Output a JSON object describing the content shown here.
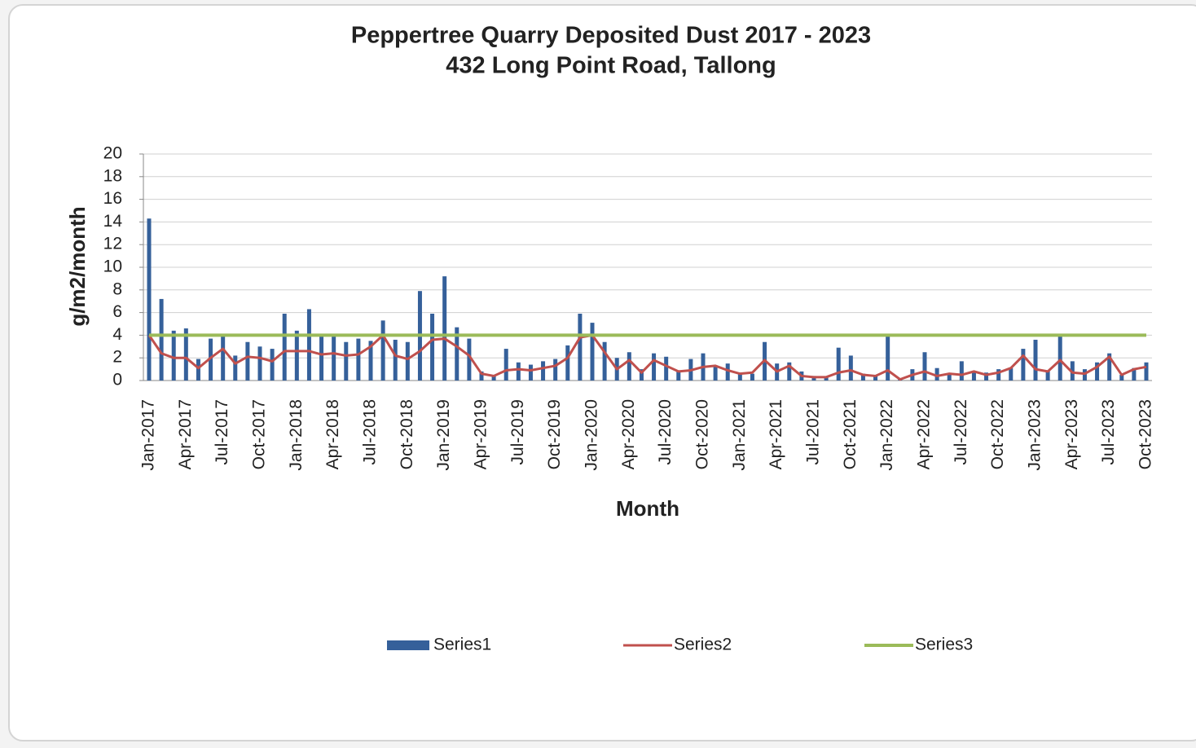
{
  "chart_data": {
    "type": "bar",
    "title": "Peppertree Quarry Deposited Dust 2017 - 2023",
    "subtitle": "432 Long Point Road, Tallong",
    "x_label": "Month",
    "y_label": "g/m2/month",
    "ylim": [
      0,
      20
    ],
    "yticks": [
      0,
      2,
      4,
      6,
      8,
      10,
      12,
      14,
      16,
      18,
      20
    ],
    "grid": true,
    "legend": "bottom",
    "categories": [
      "Jan-2017",
      null,
      null,
      "Apr-2017",
      null,
      null,
      "Jul-2017",
      null,
      null,
      "Oct-2017",
      null,
      null,
      "Jan-2018",
      null,
      null,
      "Apr-2018",
      null,
      null,
      "Jul-2018",
      null,
      null,
      "Oct-2018",
      null,
      null,
      "Jan-2019",
      null,
      null,
      "Apr-2019",
      null,
      null,
      "Jul-2019",
      null,
      null,
      "Oct-2019",
      null,
      null,
      "Jan-2020",
      null,
      null,
      "Apr-2020",
      null,
      null,
      "Jul-2020",
      null,
      null,
      "Oct-2020",
      null,
      null,
      "Jan-2021",
      null,
      null,
      "Apr-2021",
      null,
      null,
      "Jul-2021",
      null,
      null,
      "Oct-2021",
      null,
      null,
      "Jan-2022",
      null,
      null,
      "Apr-2022",
      null,
      null,
      "Jul-2022",
      null,
      null,
      "Oct-2022",
      null,
      null,
      "Jan-2023",
      null,
      null,
      "Apr-2023",
      null,
      null,
      "Jul-2023",
      null,
      null,
      "Oct-2023"
    ],
    "series": [
      {
        "name": "Series1",
        "type": "bar",
        "color": "#35609a",
        "values": [
          14.3,
          7.2,
          4.4,
          4.6,
          1.9,
          3.7,
          3.9,
          2.2,
          3.4,
          3.0,
          2.8,
          5.9,
          4.4,
          6.3,
          3.9,
          3.9,
          3.4,
          3.7,
          3.5,
          5.3,
          3.6,
          3.4,
          7.9,
          5.9,
          9.2,
          4.7,
          3.7,
          0.8,
          0.5,
          2.8,
          1.6,
          1.4,
          1.7,
          1.9,
          3.1,
          5.9,
          5.1,
          3.4,
          2.0,
          2.5,
          1.0,
          2.4,
          2.1,
          0.8,
          1.9,
          2.4,
          1.3,
          1.5,
          0.7,
          0.6,
          3.4,
          1.5,
          1.6,
          0.8,
          0.4,
          0.3,
          2.9,
          2.2,
          0.6,
          0.4,
          3.9,
          0.2,
          1.0,
          2.5,
          1.1,
          0.6,
          1.7,
          0.8,
          0.7,
          1.0,
          1.1,
          2.8,
          3.6,
          0.9,
          4.0,
          1.7,
          1.0,
          1.6,
          2.4,
          0.5,
          1.1,
          1.6
        ]
      },
      {
        "name": "Series2",
        "type": "line",
        "color": "#c0504d",
        "values": [
          4.0,
          2.4,
          2.0,
          2.0,
          1.1,
          2.0,
          2.8,
          1.5,
          2.1,
          2.0,
          1.7,
          2.6,
          2.6,
          2.6,
          2.3,
          2.4,
          2.2,
          2.3,
          3.0,
          4.0,
          2.2,
          1.9,
          2.6,
          3.6,
          3.7,
          3.0,
          2.2,
          0.6,
          0.4,
          0.9,
          1.0,
          0.9,
          1.1,
          1.3,
          2.0,
          3.8,
          4.0,
          2.5,
          1.0,
          1.8,
          0.7,
          1.8,
          1.3,
          0.8,
          0.9,
          1.2,
          1.3,
          0.9,
          0.6,
          0.7,
          1.8,
          0.8,
          1.3,
          0.4,
          0.3,
          0.3,
          0.7,
          0.9,
          0.5,
          0.4,
          0.9,
          0.1,
          0.5,
          0.8,
          0.4,
          0.6,
          0.5,
          0.8,
          0.5,
          0.7,
          1.1,
          2.2,
          1.0,
          0.8,
          1.8,
          0.7,
          0.6,
          1.2,
          2.1,
          0.5,
          1.0,
          1.2
        ]
      },
      {
        "name": "Series3",
        "type": "line",
        "color": "#9bbb59",
        "values": [
          4,
          4,
          4,
          4,
          4,
          4,
          4,
          4,
          4,
          4,
          4,
          4,
          4,
          4,
          4,
          4,
          4,
          4,
          4,
          4,
          4,
          4,
          4,
          4,
          4,
          4,
          4,
          4,
          4,
          4,
          4,
          4,
          4,
          4,
          4,
          4,
          4,
          4,
          4,
          4,
          4,
          4,
          4,
          4,
          4,
          4,
          4,
          4,
          4,
          4,
          4,
          4,
          4,
          4,
          4,
          4,
          4,
          4,
          4,
          4,
          4,
          4,
          4,
          4,
          4,
          4,
          4,
          4,
          4,
          4,
          4,
          4,
          4,
          4,
          4,
          4,
          4,
          4,
          4,
          4,
          4,
          4
        ]
      }
    ]
  }
}
